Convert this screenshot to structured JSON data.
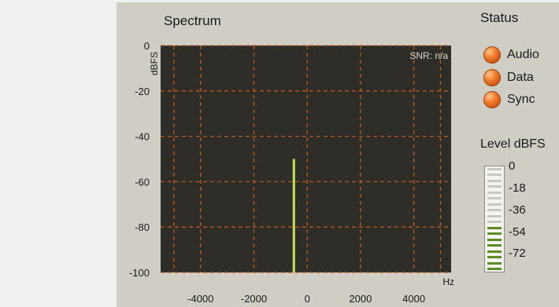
{
  "spectrum": {
    "title": "Spectrum",
    "snr_label": "SNR: n/a",
    "y_unit": "dBFS",
    "x_unit": "Hz",
    "colors": {
      "plot_bg": "#2e2d28",
      "grid": "#b65a1c",
      "trace": "#c4e05a"
    }
  },
  "chart_data": {
    "type": "line",
    "title": "Spectrum",
    "xlabel": "Hz",
    "ylabel": "dBFS",
    "xlim": [
      -5500,
      5400
    ],
    "ylim": [
      -100,
      0
    ],
    "x_ticks": [
      "-4000",
      "-2000",
      "0",
      "2000",
      "4000"
    ],
    "x_tick_values": [
      -4000,
      -2000,
      0,
      2000,
      4000
    ],
    "y_ticks": [
      "0",
      "-20",
      "-40",
      "-60",
      "-80",
      "-100"
    ],
    "y_tick_values": [
      0,
      -20,
      -40,
      -60,
      -80,
      -100
    ],
    "grid": true,
    "series": [
      {
        "x": [
          -500,
          -500
        ],
        "y": [
          -100,
          -50
        ]
      }
    ]
  },
  "status": {
    "title": "Status",
    "indicators": [
      {
        "label": "Audio",
        "color": "#f07a2a"
      },
      {
        "label": "Data",
        "color": "#f07a2a"
      },
      {
        "label": "Sync",
        "color": "#f07a2a"
      }
    ]
  },
  "level": {
    "title": "Level dBFS",
    "ticks": [
      "0",
      "-18",
      "-36",
      "-54",
      "-72"
    ],
    "fill_fraction": 0.42
  }
}
